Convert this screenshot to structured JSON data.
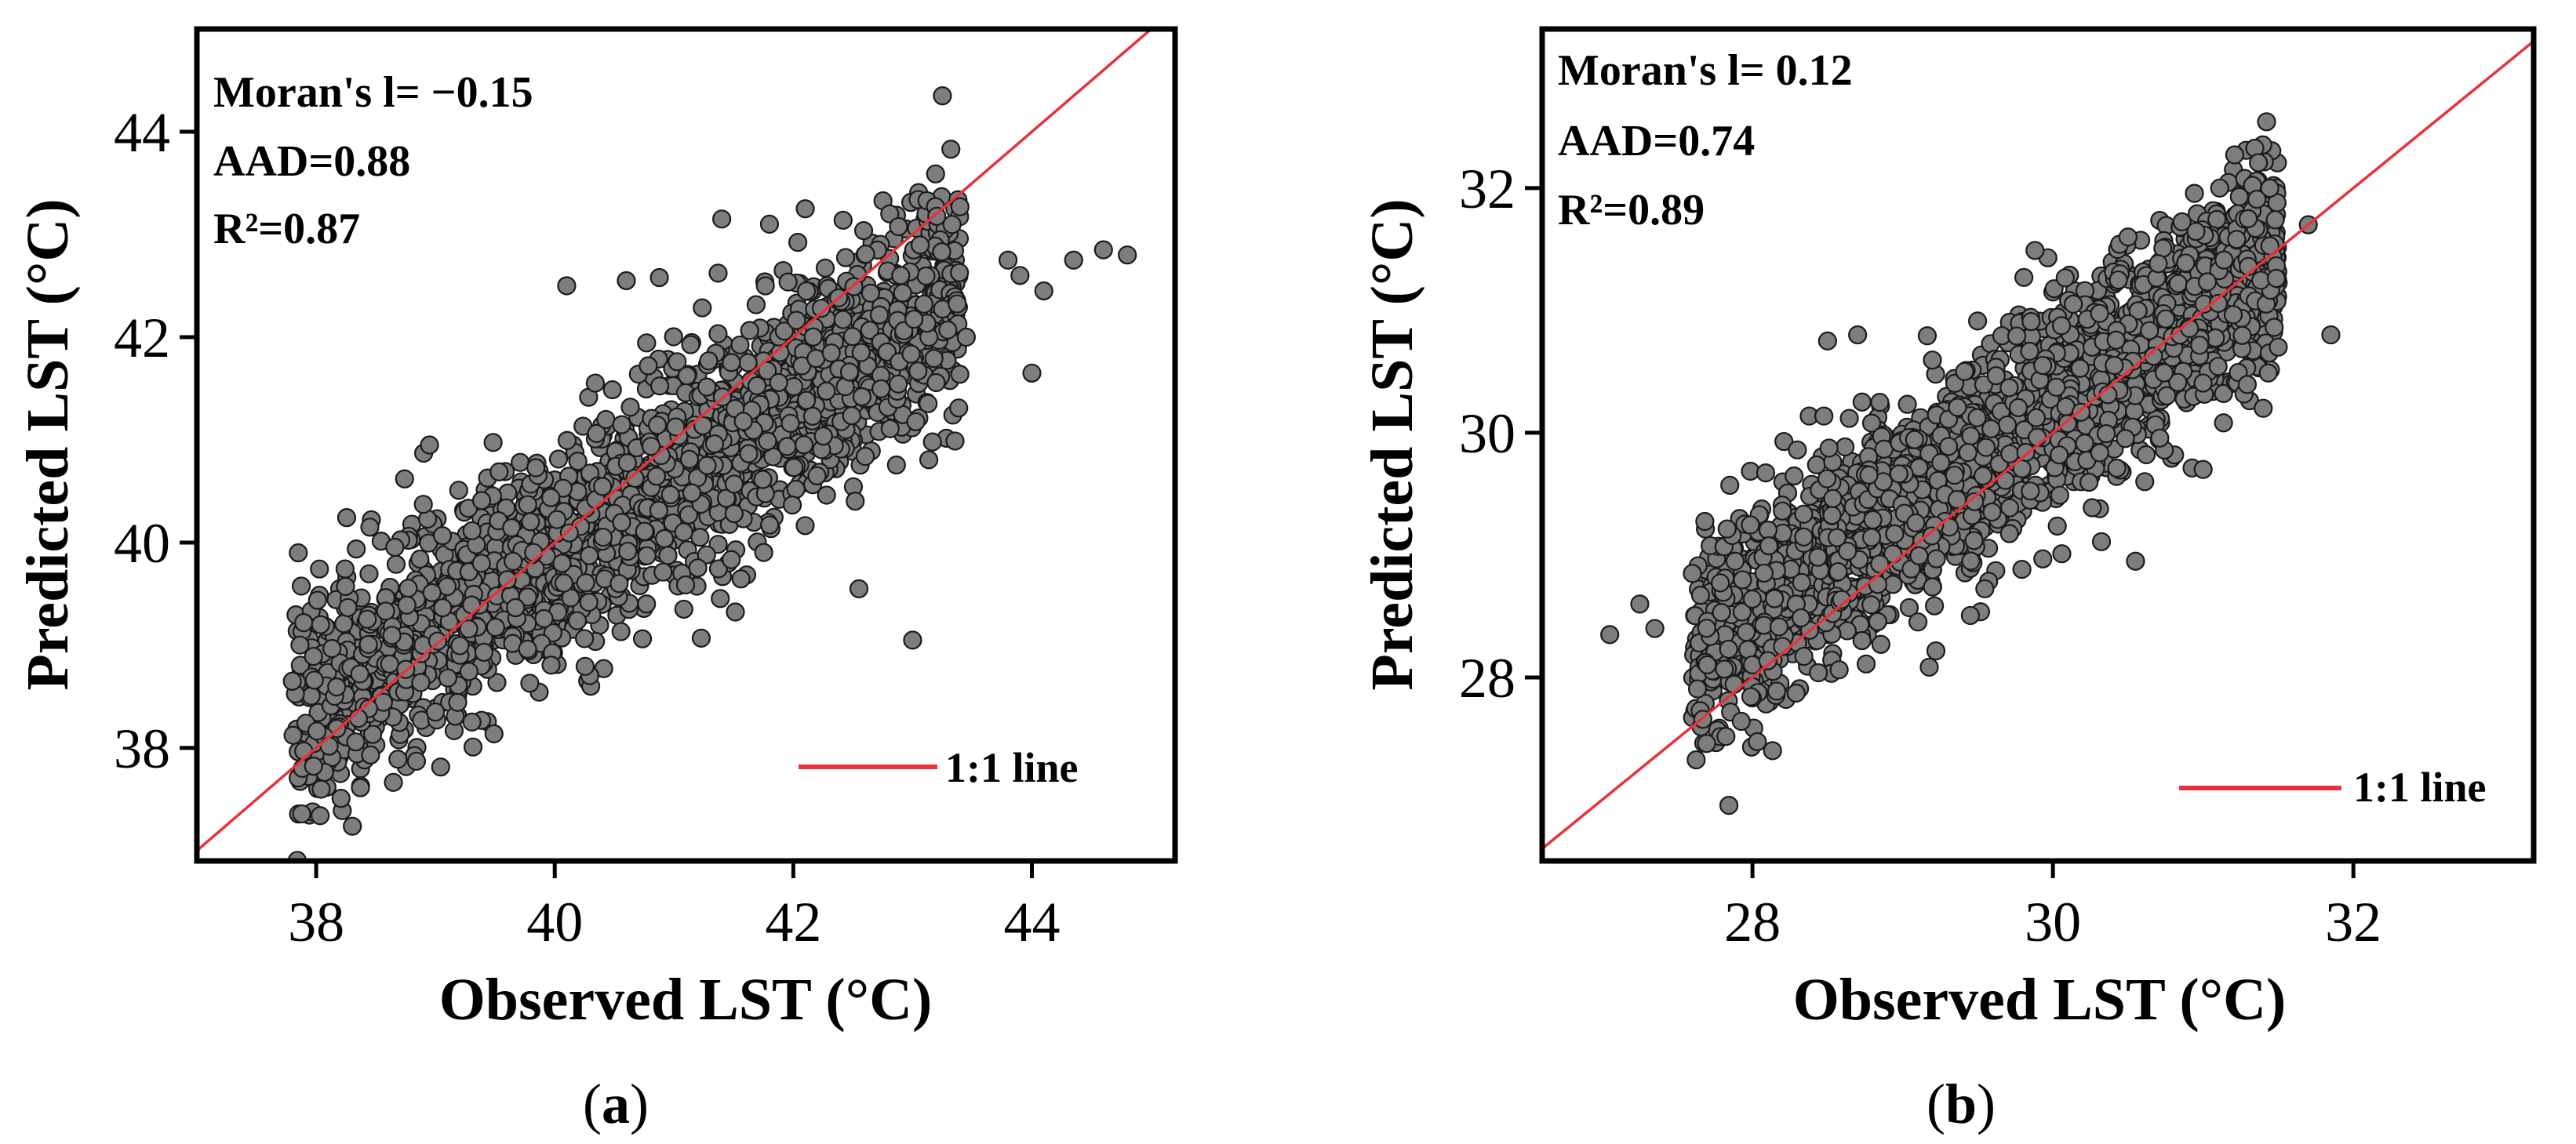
{
  "chart_data": [
    {
      "type": "scatter",
      "panel": "(a)",
      "caption_open": "(",
      "caption_letter": "a",
      "caption_close": ")",
      "xlabel": "Observed LST (°C)",
      "ylabel": "Predicted LST (°C)",
      "xlim": [
        37.0,
        45.2
      ],
      "ylim": [
        36.9,
        45.0
      ],
      "xticks": [
        38,
        40,
        42,
        44
      ],
      "yticks": [
        38,
        40,
        42,
        44
      ],
      "stats": [
        "Moran's l= −0.15",
        "AAD=0.88",
        "R²=0.87"
      ],
      "legend": "1:1 line",
      "reference_line": {
        "slope": 1,
        "intercept": 0,
        "color": "#e8313a"
      },
      "point_color": "#7d7d7d",
      "n_points": 2200,
      "noise_sd": 0.55,
      "fit": {
        "slope": 0.74,
        "intercept": 10.3
      },
      "x_range": [
        37.8,
        43.4
      ],
      "outliers": [
        [
          43.25,
          44.35
        ],
        [
          42.1,
          43.25
        ],
        [
          41.8,
          43.1
        ],
        [
          41.4,
          43.15
        ],
        [
          44.8,
          42.8
        ],
        [
          44.6,
          42.85
        ],
        [
          44.35,
          42.75
        ],
        [
          43.8,
          42.75
        ],
        [
          43.9,
          42.6
        ],
        [
          44.1,
          42.45
        ],
        [
          44.0,
          41.65
        ],
        [
          42.9,
          42.6
        ],
        [
          38.95,
          40.95
        ],
        [
          38.45,
          40.15
        ],
        [
          37.85,
          39.9
        ],
        [
          39.0,
          38.35
        ],
        [
          43.0,
          39.05
        ],
        [
          42.55,
          39.55
        ],
        [
          40.1,
          42.5
        ],
        [
          40.6,
          42.55
        ],
        [
          37.8,
          38.65
        ],
        [
          43.45,
          42.0
        ]
      ]
    },
    {
      "type": "scatter",
      "panel": "(b)",
      "caption_open": "(",
      "caption_letter": "b",
      "caption_close": ")",
      "xlabel": "Observed LST (°C)",
      "ylabel": "Predicted LST (°C)",
      "xlim": [
        26.6,
        33.2
      ],
      "ylim": [
        26.5,
        33.3
      ],
      "xticks": [
        28,
        30,
        32
      ],
      "yticks": [
        28,
        30,
        32
      ],
      "stats": [
        "Moran's l= 0.12",
        "AAD=0.74",
        "R²=0.89"
      ],
      "legend": "1:1 line",
      "reference_line": {
        "slope": 1,
        "intercept": 0,
        "color": "#e8313a"
      },
      "point_color": "#7d7d7d",
      "n_points": 2600,
      "noise_sd": 0.42,
      "fit": {
        "slope": 0.82,
        "intercept": 5.6
      },
      "x_range": [
        27.6,
        31.5
      ],
      "outliers": [
        [
          27.05,
          28.35
        ],
        [
          27.25,
          28.6
        ],
        [
          27.6,
          28.85
        ],
        [
          31.85,
          30.8
        ],
        [
          31.5,
          30.7
        ],
        [
          31.3,
          31.75
        ],
        [
          31.7,
          31.7
        ],
        [
          30.5,
          31.6
        ],
        [
          28.5,
          30.75
        ],
        [
          28.7,
          30.8
        ],
        [
          30.55,
          28.95
        ],
        [
          31.0,
          29.7
        ],
        [
          31.4,
          30.2
        ],
        [
          27.35,
          28.4
        ]
      ]
    }
  ]
}
